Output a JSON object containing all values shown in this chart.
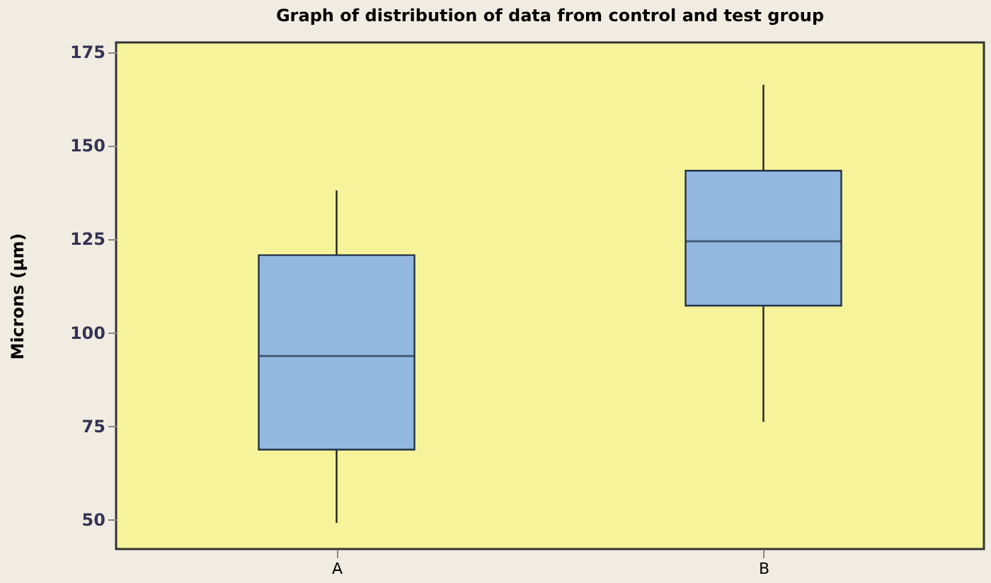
{
  "chart_data": {
    "type": "box",
    "title": "Graph of distribution of data from control and test group",
    "ylabel": "Microns (µm)",
    "categories": [
      "A",
      "B"
    ],
    "color": "#93b8e0",
    "boxes": [
      {
        "low": 49,
        "q1": 68.6,
        "median": 93.6,
        "q3": 120.6,
        "high": 137.9
      },
      {
        "low": 76,
        "q1": 107.1,
        "median": 124.3,
        "q3": 143.2,
        "high": 166.2
      }
    ],
    "ylim": [
      42,
      177.5
    ],
    "yticks": [
      50,
      75,
      100,
      125,
      150,
      175
    ],
    "grid": false
  }
}
